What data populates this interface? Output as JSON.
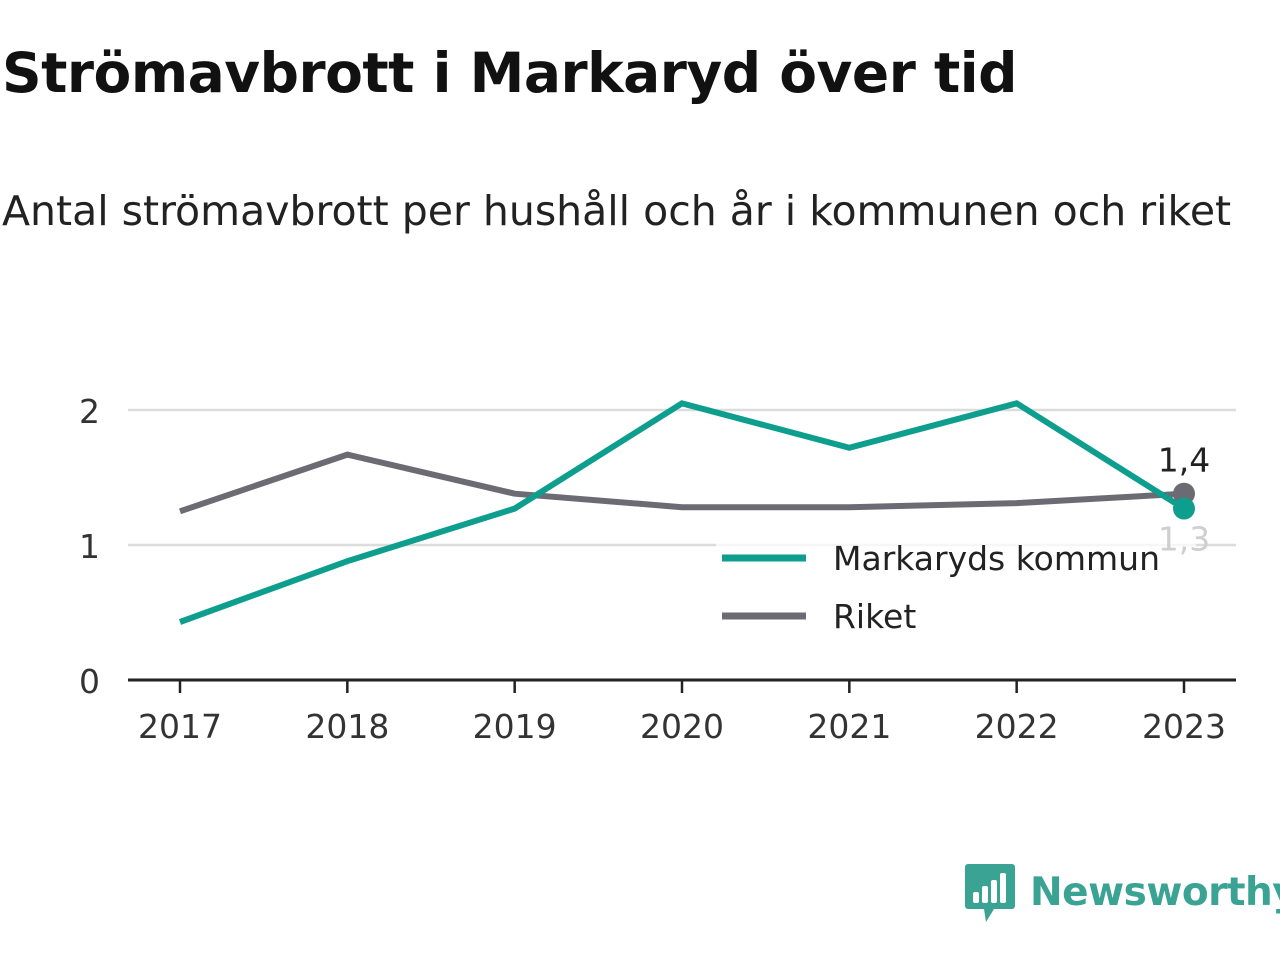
{
  "chart_data": {
    "type": "line",
    "title": "Strömavbrott i Markaryd över tid",
    "subtitle": "Antal strömavbrott per hushåll och år i kommunen och riket",
    "x": [
      "2017",
      "2018",
      "2019",
      "2020",
      "2021",
      "2022",
      "2023"
    ],
    "ylim": [
      0,
      2.2
    ],
    "yticks": [
      0,
      1,
      2
    ],
    "ytick_labels": [
      "0",
      "1",
      "2"
    ],
    "grid": true,
    "legend_position": "bottom-right",
    "series": [
      {
        "name": "Markaryds kommun",
        "color": "#0e9e8e",
        "values": [
          0.43,
          0.88,
          1.27,
          2.05,
          1.72,
          2.05,
          1.27
        ],
        "end_label": "1,3"
      },
      {
        "name": "Riket",
        "color": "#6c6b73",
        "values": [
          1.25,
          1.67,
          1.38,
          1.28,
          1.28,
          1.31,
          1.38
        ],
        "end_label": "1,4"
      }
    ]
  },
  "brand": {
    "name": "Newsworthy",
    "icon": "newsworthy-logo-icon",
    "color": "#3aa393"
  }
}
